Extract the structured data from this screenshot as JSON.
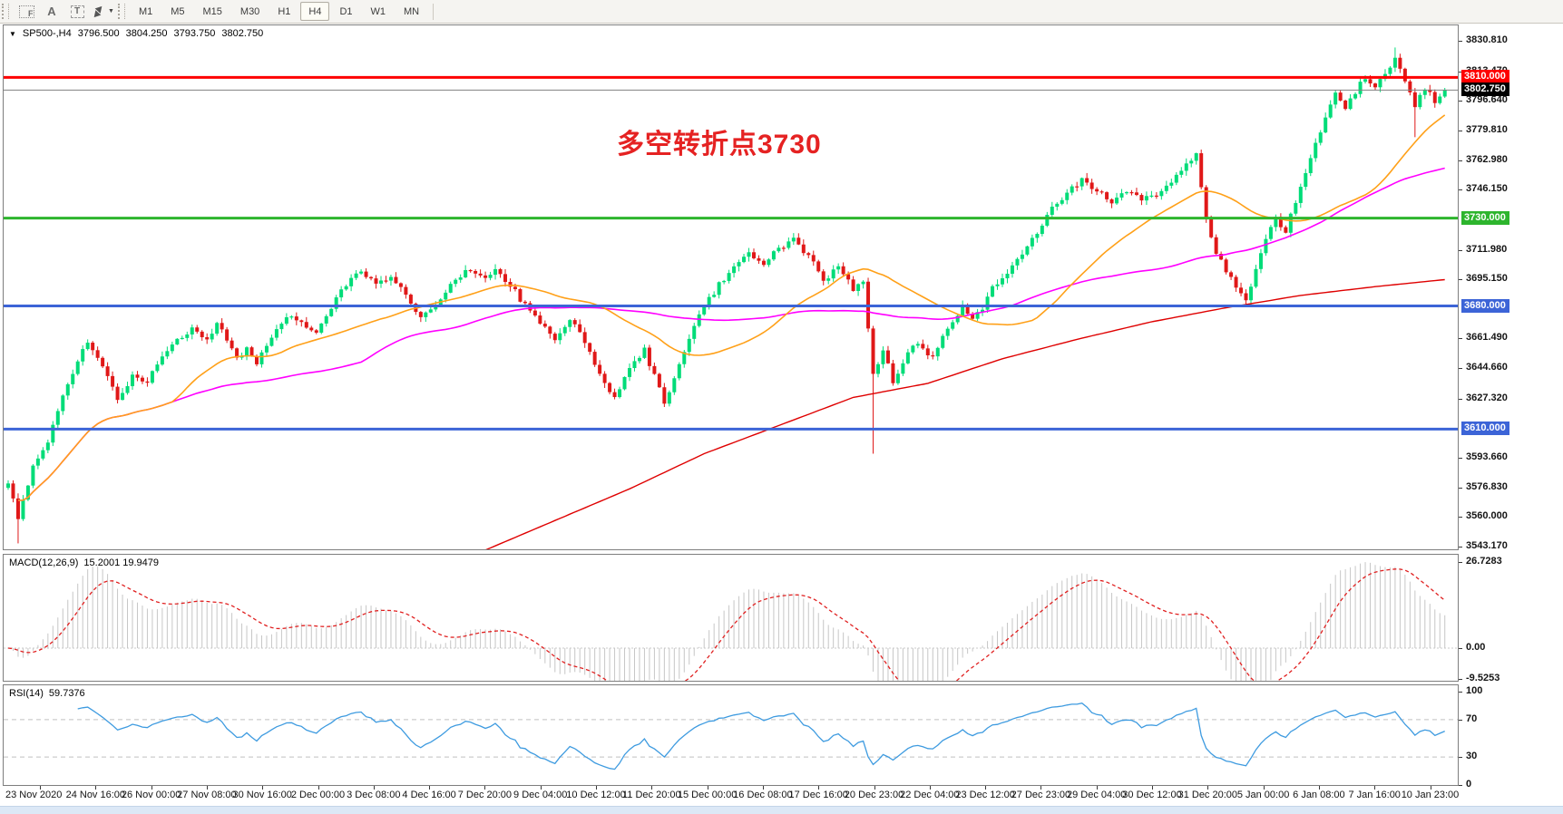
{
  "toolbar": {
    "icons": [
      {
        "name": "fibonacci-icon",
        "glyph": "F",
        "style": "grid"
      },
      {
        "name": "text-icon",
        "glyph": "A",
        "style": "plain"
      },
      {
        "name": "text-label-icon",
        "glyph": "T",
        "style": "boxed"
      },
      {
        "name": "arrows-icon",
        "glyph": "",
        "style": "arrows",
        "caret": "▼"
      }
    ],
    "timeframes": [
      "M1",
      "M5",
      "M15",
      "M30",
      "H1",
      "H4",
      "D1",
      "W1",
      "MN"
    ],
    "active_timeframe": "H4"
  },
  "header": {
    "dropdown_glyph": "▼",
    "symbol": "SP500-,H4",
    "open": "3796.500",
    "high": "3804.250",
    "low": "3793.750",
    "close": "3802.750"
  },
  "annotation": {
    "text": "多空转折点3730",
    "color": "#e52222"
  },
  "price_axis": {
    "ticks": [
      {
        "label": "3830.810",
        "value": 3830.81
      },
      {
        "label": "3813.470",
        "value": 3813.47
      },
      {
        "label": "3796.640",
        "value": 3796.64
      },
      {
        "label": "3779.810",
        "value": 3779.81
      },
      {
        "label": "3762.980",
        "value": 3762.98
      },
      {
        "label": "3746.150",
        "value": 3746.15
      },
      {
        "label": "3711.980",
        "value": 3711.98
      },
      {
        "label": "3695.150",
        "value": 3695.15
      },
      {
        "label": "3661.490",
        "value": 3661.49
      },
      {
        "label": "3644.660",
        "value": 3644.66
      },
      {
        "label": "3627.320",
        "value": 3627.32
      },
      {
        "label": "3593.660",
        "value": 3593.66
      },
      {
        "label": "3576.830",
        "value": 3576.83
      },
      {
        "label": "3560.000",
        "value": 3560.0
      },
      {
        "label": "3543.170",
        "value": 3543.17
      }
    ],
    "badges": [
      {
        "label": "3810.000",
        "value": 3810.0,
        "color": "#fe0000"
      },
      {
        "label": "3802.750",
        "value": 3802.75,
        "color": "#000000"
      },
      {
        "label": "3730.000",
        "value": 3730.0,
        "color": "#2db52d"
      },
      {
        "label": "3680.000",
        "value": 3680.0,
        "color": "#3c64d7"
      },
      {
        "label": "3610.000",
        "value": 3610.0,
        "color": "#3c64d7"
      }
    ]
  },
  "hlines": [
    {
      "price": 3810.0,
      "color": "#fe0000",
      "width": 3
    },
    {
      "price": 3802.75,
      "color": "#808080",
      "width": 1
    },
    {
      "price": 3730.0,
      "color": "#2db52d",
      "width": 3
    },
    {
      "price": 3680.0,
      "color": "#3c64d7",
      "width": 3
    },
    {
      "price": 3610.0,
      "color": "#3c64d7",
      "width": 3
    }
  ],
  "macd": {
    "label": "MACD(12,26,9)",
    "values": "15.2001 19.9479",
    "axis": [
      {
        "label": "26.7283",
        "value": 26.7283
      },
      {
        "label": "0.00",
        "value": 0
      },
      {
        "label": "-9.5253",
        "value": -9.5253
      }
    ],
    "params": {
      "fast": 12,
      "slow": 26,
      "signal": 9
    }
  },
  "rsi": {
    "label": "RSI(14)",
    "value": "59.7376",
    "period": 14,
    "levels": [
      70,
      30
    ],
    "axis": [
      {
        "label": "100",
        "value": 100
      },
      {
        "label": "70",
        "value": 70
      },
      {
        "label": "30",
        "value": 30
      },
      {
        "label": "0",
        "value": 0
      }
    ]
  },
  "time_axis": {
    "labels": [
      "23 Nov 2020",
      "24 Nov 16:00",
      "26 Nov 00:00",
      "27 Nov 08:00",
      "30 Nov 16:00",
      "2 Dec 00:00",
      "3 Dec 08:00",
      "4 Dec 16:00",
      "7 Dec 20:00",
      "9 Dec 04:00",
      "10 Dec 12:00",
      "11 Dec 20:00",
      "15 Dec 00:00",
      "16 Dec 08:00",
      "17 Dec 16:00",
      "20 Dec 23:00",
      "22 Dec 04:00",
      "23 Dec 12:00",
      "27 Dec 23:00",
      "29 Dec 04:00",
      "30 Dec 12:00",
      "31 Dec 20:00",
      "5 Jan 00:00",
      "6 Jan 08:00",
      "7 Jan 16:00",
      "10 Jan 23:00"
    ]
  },
  "colors": {
    "bull": "#00dc78",
    "bear": "#e01818",
    "ma_fast": "#ffa018",
    "ma_mid": "#ff00ff",
    "ma_slow": "#df0000",
    "macd_hist": "#c6c6c6",
    "macd_signal": "#e02020",
    "macd_zero": "#c9c9c9",
    "rsi_line": "#3e9be0",
    "level_dash": "#c0c0c0"
  },
  "chart_data": {
    "type": "candlestick",
    "symbol": "SP500-",
    "timeframe": "H4",
    "count": 290,
    "last_close": 3802.75,
    "visible_price_range": {
      "top": 3830.81,
      "bottom": 3543.17
    },
    "close_anchors": [
      [
        0,
        3578
      ],
      [
        2,
        3560
      ],
      [
        5,
        3588
      ],
      [
        8,
        3604
      ],
      [
        11,
        3630
      ],
      [
        14,
        3648
      ],
      [
        16,
        3660
      ],
      [
        18,
        3650
      ],
      [
        20,
        3640
      ],
      [
        22,
        3628
      ],
      [
        25,
        3640
      ],
      [
        28,
        3637
      ],
      [
        31,
        3650
      ],
      [
        34,
        3660
      ],
      [
        37,
        3668
      ],
      [
        40,
        3660
      ],
      [
        42,
        3670
      ],
      [
        44,
        3662
      ],
      [
        46,
        3650
      ],
      [
        48,
        3655
      ],
      [
        50,
        3648
      ],
      [
        53,
        3662
      ],
      [
        56,
        3675
      ],
      [
        59,
        3670
      ],
      [
        62,
        3665
      ],
      [
        65,
        3680
      ],
      [
        68,
        3692
      ],
      [
        71,
        3700
      ],
      [
        74,
        3692
      ],
      [
        77,
        3698
      ],
      [
        80,
        3685
      ],
      [
        83,
        3672
      ],
      [
        86,
        3680
      ],
      [
        89,
        3692
      ],
      [
        92,
        3700
      ],
      [
        95,
        3696
      ],
      [
        98,
        3700
      ],
      [
        101,
        3692
      ],
      [
        104,
        3680
      ],
      [
        107,
        3670
      ],
      [
        110,
        3662
      ],
      [
        113,
        3672
      ],
      [
        116,
        3660
      ],
      [
        119,
        3640
      ],
      [
        122,
        3628
      ],
      [
        125,
        3645
      ],
      [
        128,
        3655
      ],
      [
        130,
        3640
      ],
      [
        132,
        3625
      ],
      [
        134,
        3640
      ],
      [
        137,
        3662
      ],
      [
        140,
        3680
      ],
      [
        143,
        3692
      ],
      [
        146,
        3702
      ],
      [
        149,
        3710
      ],
      [
        152,
        3705
      ],
      [
        155,
        3712
      ],
      [
        158,
        3718
      ],
      [
        161,
        3708
      ],
      [
        164,
        3695
      ],
      [
        167,
        3702
      ],
      [
        170,
        3690
      ],
      [
        172,
        3695
      ],
      [
        174,
        3640
      ],
      [
        176,
        3655
      ],
      [
        178,
        3637
      ],
      [
        180,
        3648
      ],
      [
        183,
        3660
      ],
      [
        186,
        3650
      ],
      [
        189,
        3668
      ],
      [
        192,
        3680
      ],
      [
        194,
        3672
      ],
      [
        196,
        3678
      ],
      [
        198,
        3690
      ],
      [
        201,
        3698
      ],
      [
        204,
        3710
      ],
      [
        207,
        3722
      ],
      [
        210,
        3735
      ],
      [
        213,
        3745
      ],
      [
        216,
        3752
      ],
      [
        219,
        3746
      ],
      [
        222,
        3738
      ],
      [
        225,
        3746
      ],
      [
        228,
        3740
      ],
      [
        231,
        3744
      ],
      [
        234,
        3750
      ],
      [
        237,
        3760
      ],
      [
        239,
        3768
      ],
      [
        241,
        3730
      ],
      [
        243,
        3710
      ],
      [
        245,
        3700
      ],
      [
        247,
        3692
      ],
      [
        249,
        3684
      ],
      [
        251,
        3700
      ],
      [
        253,
        3718
      ],
      [
        255,
        3730
      ],
      [
        257,
        3722
      ],
      [
        259,
        3740
      ],
      [
        261,
        3755
      ],
      [
        263,
        3772
      ],
      [
        265,
        3788
      ],
      [
        267,
        3800
      ],
      [
        269,
        3792
      ],
      [
        271,
        3802
      ],
      [
        273,
        3810
      ],
      [
        275,
        3804
      ],
      [
        277,
        3812
      ],
      [
        279,
        3820
      ],
      [
        281,
        3808
      ],
      [
        283,
        3794
      ],
      [
        285,
        3803
      ],
      [
        287,
        3797
      ],
      [
        289,
        3802.75
      ]
    ],
    "special_wicks": [
      {
        "i": 2,
        "side": "low",
        "price": 3545
      },
      {
        "i": 174,
        "side": "low",
        "price": 3596
      },
      {
        "i": 279,
        "side": "high",
        "price": 3827
      },
      {
        "i": 283,
        "side": "low",
        "price": 3776
      }
    ],
    "moving_averages": [
      {
        "name": "ma-fast-orange",
        "period": 34
      },
      {
        "name": "ma-mid-magenta",
        "period": 72
      }
    ],
    "slow_ma_anchors": [
      [
        95,
        3540
      ],
      [
        110,
        3558
      ],
      [
        125,
        3576
      ],
      [
        140,
        3596
      ],
      [
        155,
        3612
      ],
      [
        170,
        3628
      ],
      [
        185,
        3636
      ],
      [
        200,
        3650
      ],
      [
        215,
        3661
      ],
      [
        230,
        3671
      ],
      [
        245,
        3679
      ],
      [
        260,
        3686
      ],
      [
        275,
        3691
      ],
      [
        289,
        3695
      ]
    ]
  }
}
